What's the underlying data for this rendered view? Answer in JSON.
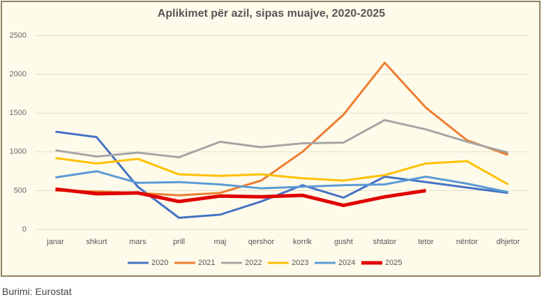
{
  "chart_data": {
    "type": "line",
    "title": "Aplikimet për azil, sipas muajve, 2020-2025",
    "categories": [
      "janar",
      "shkurt",
      "mars",
      "prill",
      "maj",
      "qershor",
      "korrik",
      "gusht",
      "shtator",
      "tetor",
      "nëntor",
      "dhjetor"
    ],
    "series": [
      {
        "name": "2020",
        "color": "#4472c4",
        "width": 3,
        "values": [
          1260,
          1190,
          550,
          150,
          190,
          360,
          570,
          410,
          680,
          610,
          540,
          470
        ]
      },
      {
        "name": "2021",
        "color": "#ed7d31",
        "width": 3,
        "values": [
          500,
          490,
          470,
          440,
          470,
          630,
          1000,
          1480,
          2150,
          1570,
          1150,
          960
        ]
      },
      {
        "name": "2022",
        "color": "#a5a5a5",
        "width": 3,
        "values": [
          1020,
          940,
          990,
          930,
          1130,
          1060,
          1110,
          1120,
          1410,
          1290,
          1130,
          990
        ]
      },
      {
        "name": "2023",
        "color": "#ffc000",
        "width": 3,
        "values": [
          920,
          850,
          910,
          710,
          690,
          710,
          660,
          630,
          700,
          850,
          880,
          580
        ]
      },
      {
        "name": "2024",
        "color": "#5b9bd5",
        "width": 3,
        "values": [
          670,
          750,
          600,
          610,
          580,
          530,
          550,
          570,
          580,
          680,
          590,
          480
        ]
      },
      {
        "name": "2025",
        "color": "#e00000",
        "width": 5,
        "values": [
          520,
          460,
          470,
          360,
          430,
          420,
          440,
          310,
          420,
          500,
          null,
          null
        ]
      }
    ],
    "ylim": [
      0,
      2500
    ],
    "yticks": [
      0,
      500,
      1000,
      1500,
      2000,
      2500
    ],
    "grid": true,
    "legend": "bottom"
  },
  "source": "Burimi: Eurostat"
}
